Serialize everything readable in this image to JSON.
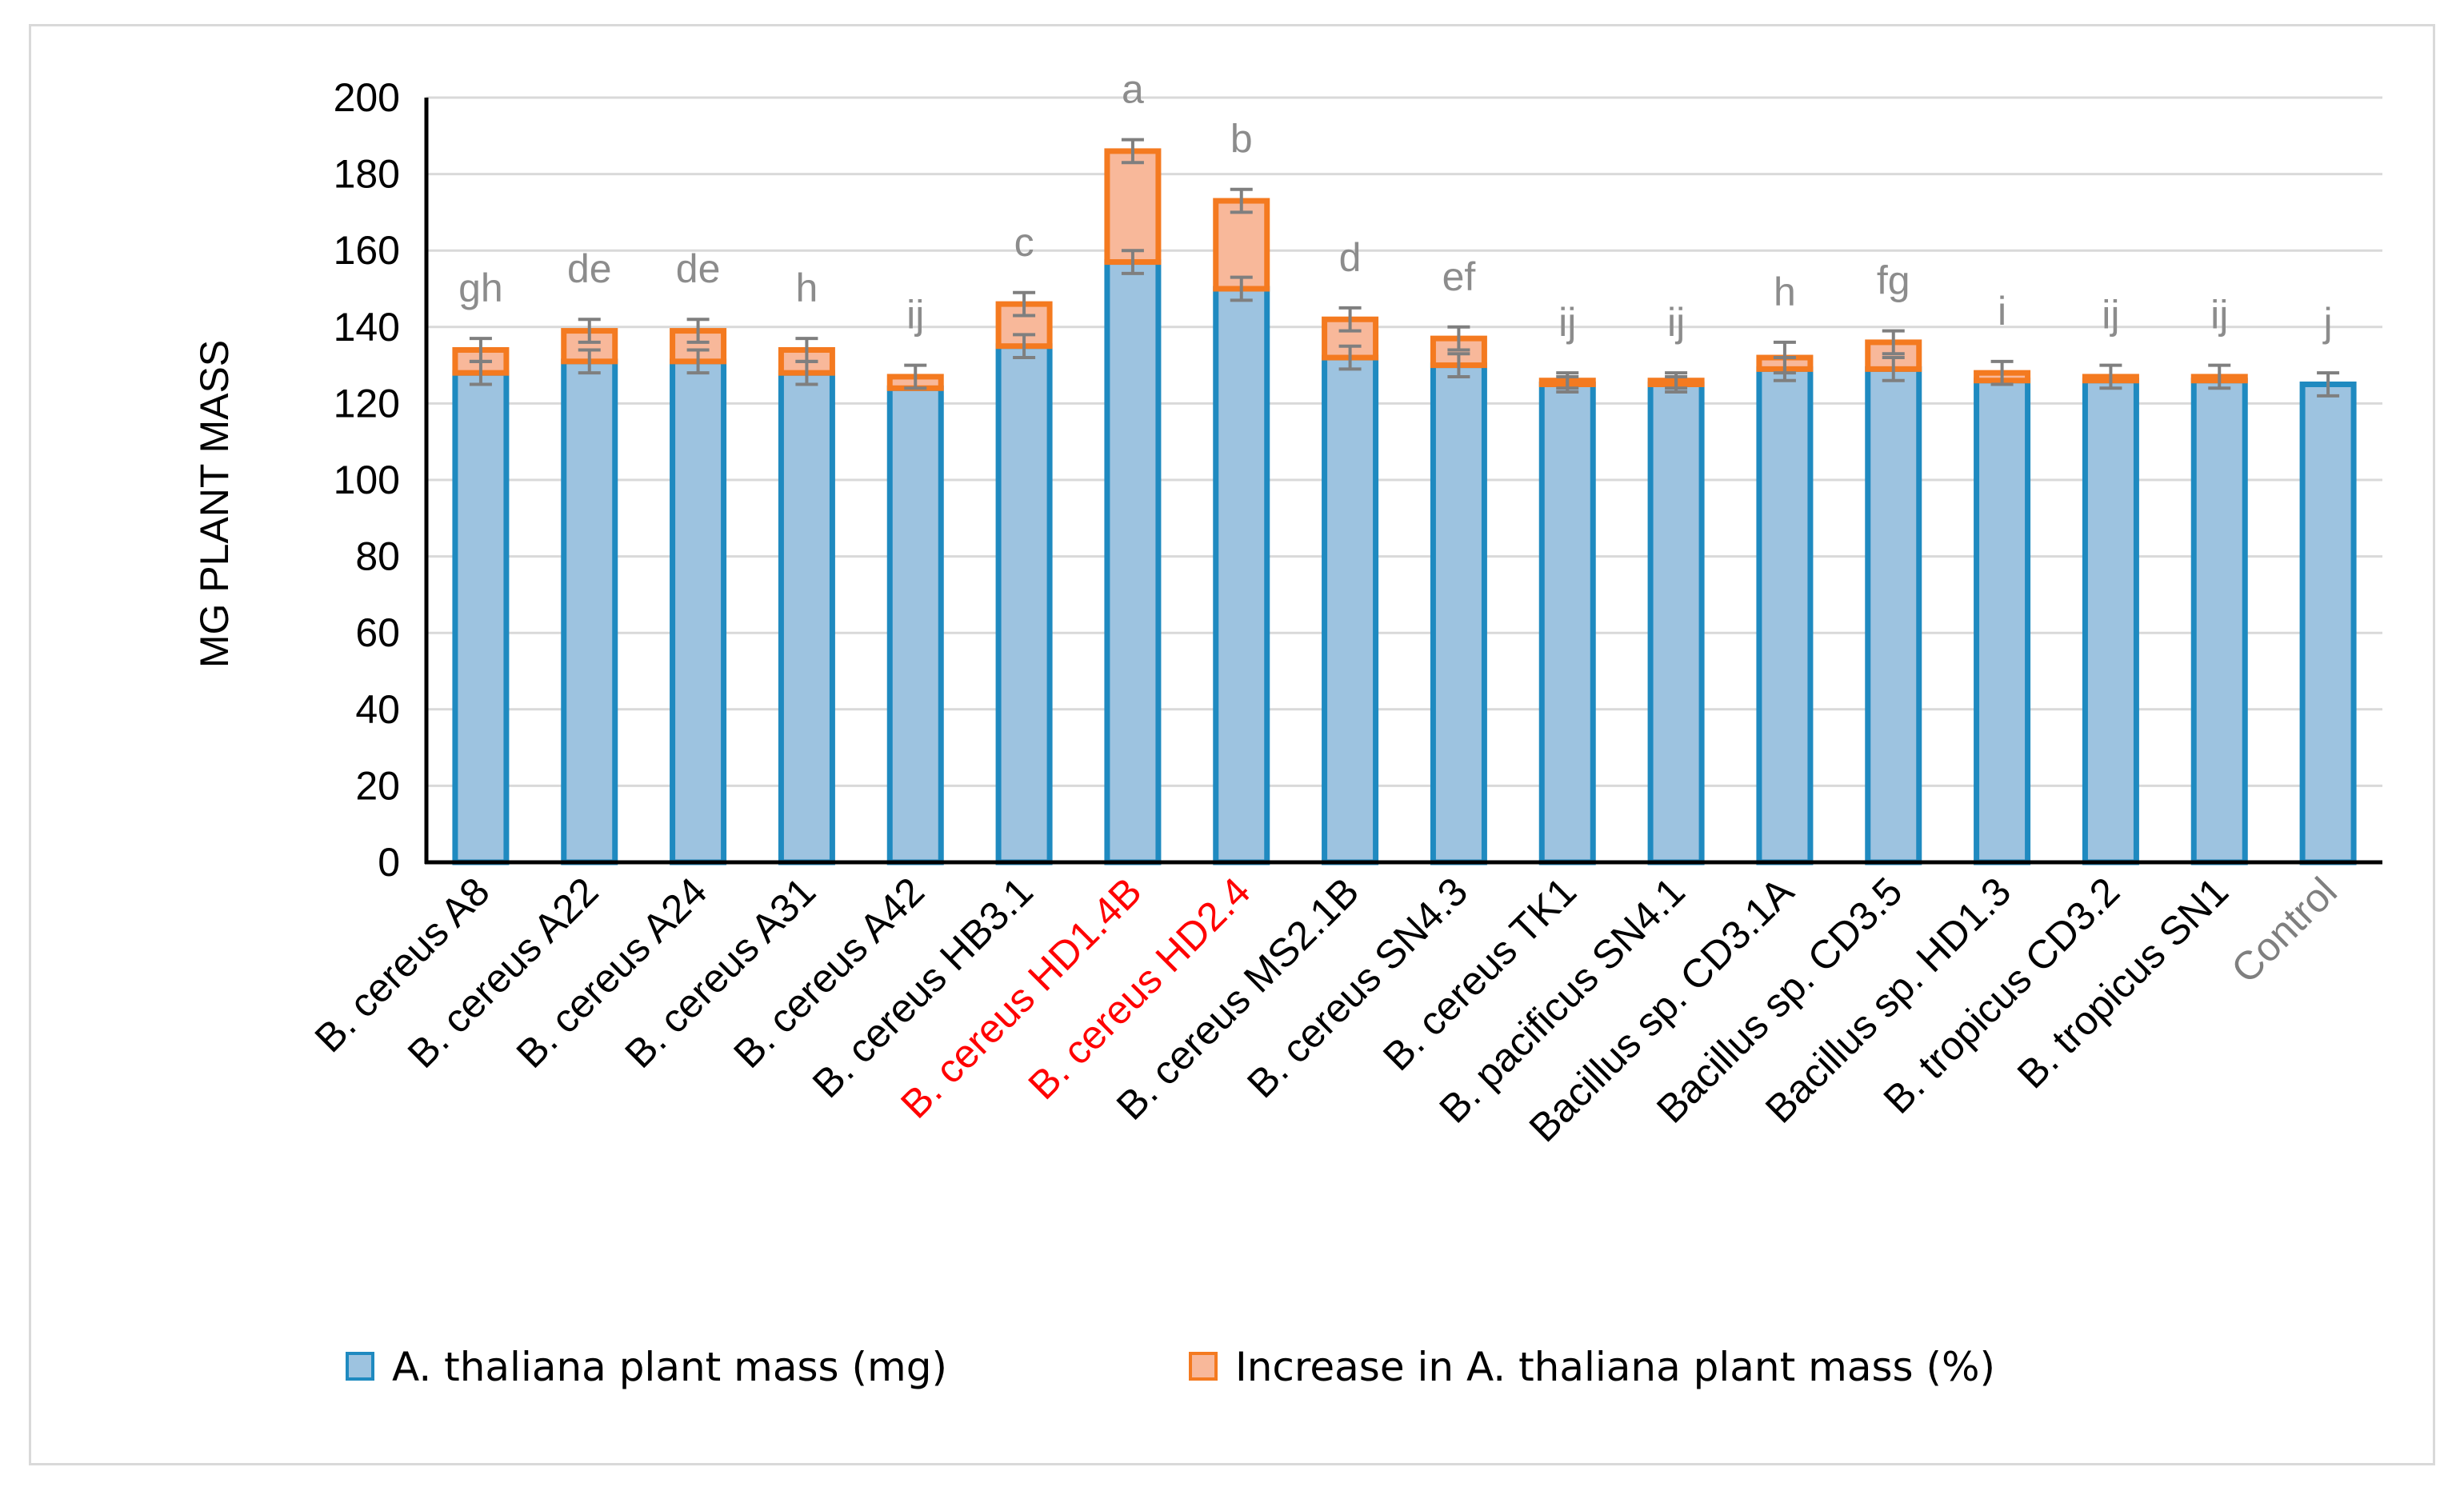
{
  "chart_data": {
    "type": "bar",
    "stacked": true,
    "title": "",
    "xlabel": "",
    "ylabel": "MG PLANT MASS",
    "ylim": [
      0,
      200
    ],
    "ytick_step": 20,
    "grid": true,
    "legend_position": "bottom",
    "categories": [
      "B. cereus A8",
      "B. cereus A22",
      "B. cereus A24",
      "B. cereus A31",
      "B. cereus A42",
      "B. cereus HB3.1",
      "B. cereus HD1.4B",
      "B. cereus HD2.4",
      "B. cereus MS2.1B",
      "B. cereus SN4.3",
      "B. cereus TK1",
      "B. pacificus SN4.1",
      "Bacillus sp. CD3.1A",
      "Bacillus sp. CD3.5",
      "Bacillus sp. HD1.3",
      "B. tropicus CD3.2",
      "B. tropicus SN1",
      "Control"
    ],
    "category_colors": [
      "#000000",
      "#000000",
      "#000000",
      "#000000",
      "#000000",
      "#000000",
      "#ff0000",
      "#ff0000",
      "#000000",
      "#000000",
      "#000000",
      "#000000",
      "#000000",
      "#000000",
      "#000000",
      "#000000",
      "#000000",
      "#7f7f7f"
    ],
    "significance_letters": [
      "gh",
      "de",
      "de",
      "h",
      "ij",
      "c",
      "a",
      "b",
      "d",
      "ef",
      "ij",
      "ij",
      "h",
      "fg",
      "i",
      "ij",
      "ij",
      "j"
    ],
    "series": [
      {
        "name": "A. thaliana plant mass (mg)",
        "color": "#1f8ac0",
        "fill": "#9dc3e0",
        "values": [
          128,
          131,
          131,
          128,
          124,
          135,
          157,
          150,
          132,
          130,
          125,
          125,
          129,
          129,
          126,
          126,
          126,
          125
        ]
      },
      {
        "name": "Increase in A. thaliana plant mass (%)",
        "color": "#f47a20",
        "fill": "#f8b89a",
        "values": [
          6,
          8,
          8,
          6,
          3,
          11,
          29,
          23,
          10,
          7,
          1,
          1,
          3,
          7,
          2,
          1,
          1,
          0
        ]
      }
    ],
    "error_bars": {
      "top": [
        3,
        3,
        3,
        3,
        3,
        3,
        3,
        3,
        3,
        3,
        2,
        2,
        4,
        3,
        3,
        3,
        3,
        3
      ],
      "inner": [
        3,
        3,
        3,
        3,
        0,
        3,
        3,
        3,
        3,
        3,
        2,
        2,
        3,
        3,
        0,
        0,
        0,
        3
      ]
    }
  }
}
